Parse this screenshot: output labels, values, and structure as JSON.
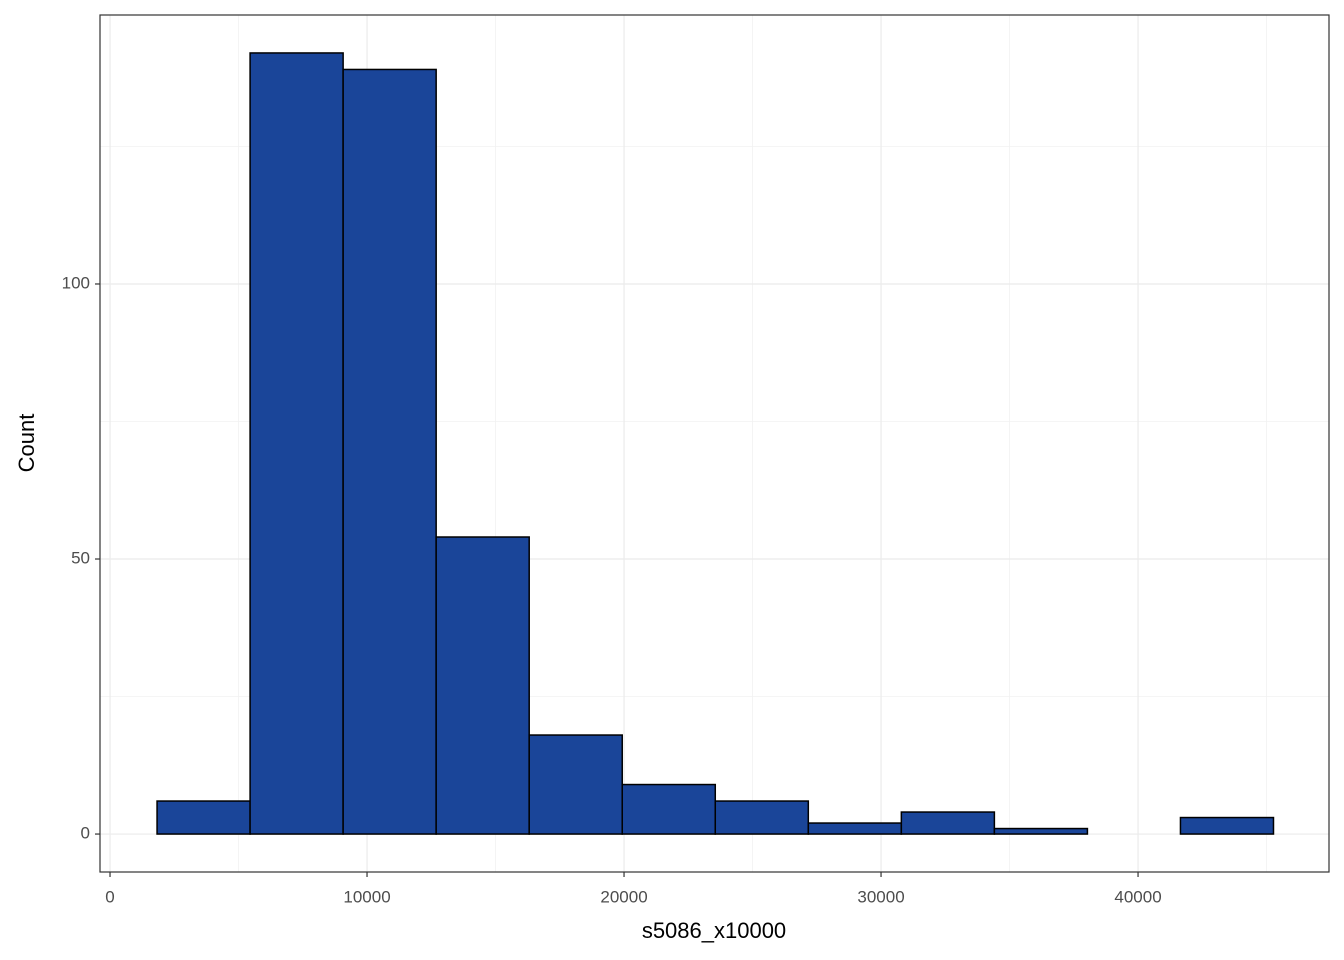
{
  "chart_data": {
    "type": "histogram",
    "x_label": "s5086_x10000",
    "y_label": "Count",
    "bins": [
      1830,
      5450,
      9070,
      12690,
      16310,
      19930,
      23550,
      27170,
      30790,
      34410,
      38030,
      41650,
      45270
    ],
    "counts": [
      6,
      142,
      139,
      54,
      18,
      9,
      6,
      2,
      4,
      1,
      0,
      3
    ],
    "color": "#1a4599",
    "edgecolor": "#000000",
    "xlim": [
      -390,
      47430
    ],
    "xticks": [
      0,
      10000,
      20000,
      30000,
      40000
    ],
    "ylim": [
      -6.9,
      148.9
    ],
    "yticks": [
      0,
      50,
      100
    ],
    "grid": true,
    "minor_grid": true
  }
}
